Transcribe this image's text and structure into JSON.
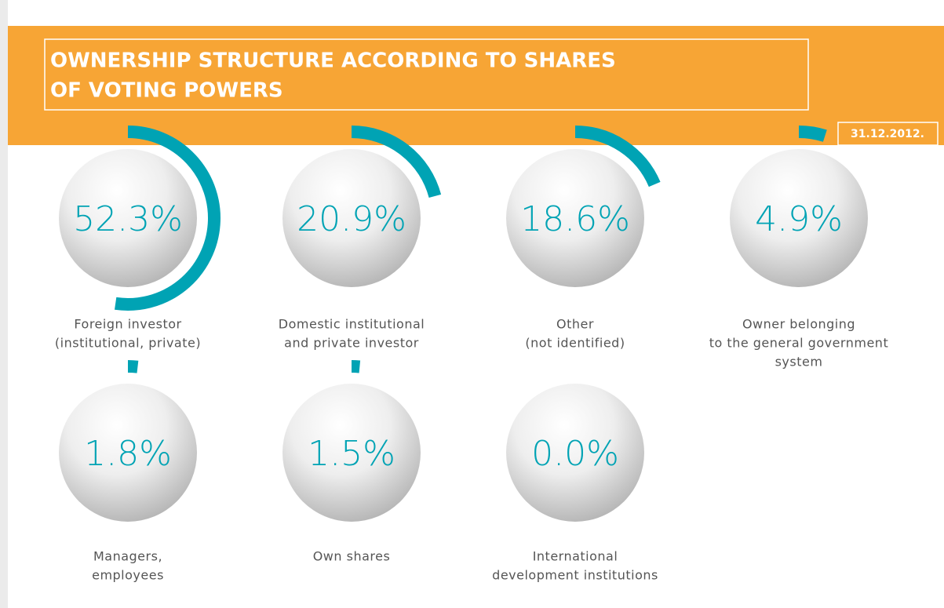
{
  "chart_data": {
    "type": "radial",
    "title": [
      "OWNERSHIP STRUCTURE ACCORDING TO SHARES",
      "OF VOTING POWERS"
    ],
    "date": "31.12.2012.",
    "categories": [
      [
        "Foreign investor",
        "(institutional, private)"
      ],
      [
        "Domestic institutional",
        "and private investor"
      ],
      [
        "Other",
        "(not identified)"
      ],
      [
        "Owner belonging",
        "to the general government",
        "system"
      ],
      [
        "Managers,",
        "employees"
      ],
      [
        "Own shares"
      ],
      [
        "International",
        "development institutions"
      ]
    ],
    "values": [
      52.3,
      20.9,
      18.6,
      4.9,
      1.8,
      1.5,
      0.0
    ],
    "value_labels": [
      "52.3%",
      "20.9%",
      "18.6%",
      "4.9%",
      "1.8%",
      "1.5%",
      "0.0%"
    ],
    "color": "#00a3b4"
  }
}
